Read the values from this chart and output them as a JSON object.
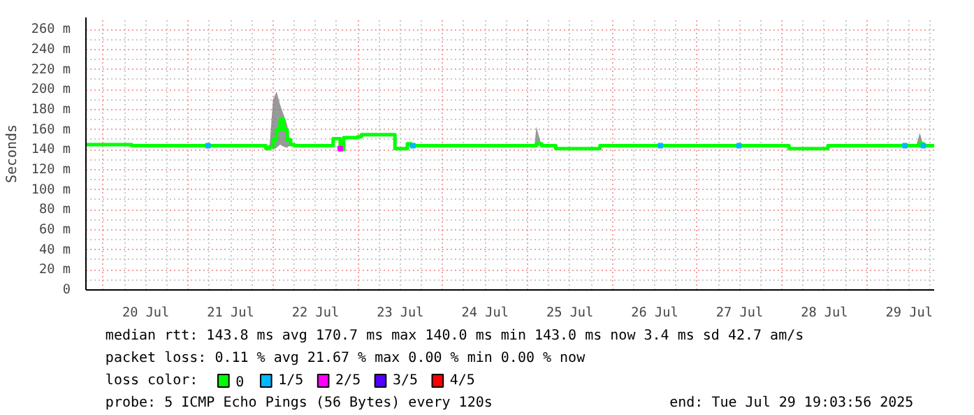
{
  "chart_data": {
    "type": "line",
    "ylabel": "Seconds",
    "xlim": [
      "2025-07-19T19:04",
      "2025-07-29T19:04"
    ],
    "xticks": [
      {
        "value": "2025-07-20T12:00",
        "label": "20 Jul"
      },
      {
        "value": "2025-07-21T12:00",
        "label": "21 Jul"
      },
      {
        "value": "2025-07-22T12:00",
        "label": "22 Jul"
      },
      {
        "value": "2025-07-23T12:00",
        "label": "23 Jul"
      },
      {
        "value": "2025-07-24T12:00",
        "label": "24 Jul"
      },
      {
        "value": "2025-07-25T12:00",
        "label": "25 Jul"
      },
      {
        "value": "2025-07-26T12:00",
        "label": "26 Jul"
      },
      {
        "value": "2025-07-27T12:00",
        "label": "27 Jul"
      },
      {
        "value": "2025-07-28T12:00",
        "label": "28 Jul"
      },
      {
        "value": "2025-07-29T12:00",
        "label": "29 Jul"
      }
    ],
    "ylim": [
      0,
      272
    ],
    "yticks": [
      0,
      {
        "value": 20,
        "label": "20 m"
      },
      {
        "value": 40,
        "label": "40 m"
      },
      {
        "value": 60,
        "label": "60 m"
      },
      {
        "value": 80,
        "label": "80 m"
      },
      {
        "value": 100,
        "label": "100 m"
      },
      {
        "value": 120,
        "label": "120 m"
      },
      {
        "value": 140,
        "label": "140 m"
      },
      {
        "value": 160,
        "label": "160 m"
      },
      {
        "value": 180,
        "label": "180 m"
      },
      {
        "value": 200,
        "label": "200 m"
      },
      {
        "value": 220,
        "label": "220 m"
      },
      {
        "value": 240,
        "label": "240 m"
      },
      {
        "value": 260,
        "label": "260 m"
      }
    ],
    "grid": true,
    "legend": "bottom",
    "legend_title": "loss color:",
    "series": [
      {
        "name": "0",
        "color": "#00ff00",
        "x": [
          "2025-07-19T19:04",
          "2025-07-20T08:00",
          "2025-07-21T21:00",
          "2025-07-21T22:00",
          "2025-07-21T23:00",
          "2025-07-22T00:00",
          "2025-07-22T01:00",
          "2025-07-22T02:00",
          "2025-07-22T03:00",
          "2025-07-22T04:00",
          "2025-07-22T05:00",
          "2025-07-22T06:00",
          "2025-07-22T16:00",
          "2025-07-22T17:00",
          "2025-07-22T18:30",
          "2025-07-22T19:00",
          "2025-07-22T20:00",
          "2025-07-23T00:00",
          "2025-07-23T01:00",
          "2025-07-23T10:00",
          "2025-07-23T10:30",
          "2025-07-23T13:00",
          "2025-07-23T14:00",
          "2025-07-23T15:00",
          "2025-07-25T02:00",
          "2025-07-25T02:30",
          "2025-07-25T04:00",
          "2025-07-25T08:00",
          "2025-07-25T20:00",
          "2025-07-25T20:30",
          "2025-07-28T01:00",
          "2025-07-28T02:00",
          "2025-07-28T12:00",
          "2025-07-28T13:00",
          "2025-07-29T14:00",
          "2025-07-29T15:00",
          "2025-07-29T16:00",
          "2025-07-29T19:04"
        ],
        "values": [
          145,
          144,
          144,
          141,
          143,
          150,
          160,
          170,
          160,
          150,
          145,
          144,
          144,
          151,
          151,
          140,
          152,
          153,
          155,
          155,
          141,
          141,
          146,
          144,
          144,
          146,
          144,
          141,
          141,
          144,
          144,
          141,
          141,
          144,
          144,
          146,
          144,
          144
        ],
        "lower": [
          145,
          144,
          144,
          141,
          143,
          140,
          142,
          145,
          143,
          142,
          145,
          144,
          144,
          151,
          151,
          140,
          152,
          153,
          155,
          155,
          141,
          141,
          146,
          144,
          144,
          144,
          144,
          141,
          141,
          144,
          144,
          141,
          141,
          144,
          144,
          142,
          144,
          144
        ],
        "upper": [
          145,
          144,
          144,
          141,
          143,
          190,
          198,
          185,
          175,
          165,
          145,
          144,
          144,
          151,
          151,
          140,
          152,
          153,
          155,
          155,
          141,
          141,
          146,
          144,
          144,
          163,
          144,
          141,
          141,
          144,
          144,
          141,
          141,
          144,
          144,
          157,
          144,
          144
        ]
      },
      {
        "name": "1/5",
        "color": "#00b8ff",
        "type": "scatter",
        "marker": "square",
        "x": [
          "2025-07-21T05:36",
          "2025-07-23T15:36",
          "2025-07-26T13:36",
          "2025-07-27T11:50",
          "2025-07-29T10:48",
          "2025-07-29T16:00"
        ],
        "values": [
          144,
          144,
          144,
          144,
          144,
          144
        ]
      },
      {
        "name": "2/5",
        "color": "#ff00ff",
        "type": "scatter",
        "marker": "square",
        "x": [
          "2025-07-22T19:00"
        ],
        "values": [
          141
        ]
      },
      {
        "name": "3/5",
        "color": "#5500ff",
        "type": "scatter",
        "marker": "square"
      },
      {
        "name": "4/5",
        "color": "#ff0000",
        "type": "scatter",
        "marker": "square"
      }
    ],
    "annotations": [
      "median rtt:  143.8 ms avg  170.7 ms max  140.0 ms min  143.0 ms now  3.4 ms sd  42.7   am/s",
      "packet loss: 0.11 % avg  21.67 % max  0.00 % min  0.00 % now",
      "probe:       5 ICMP Echo Pings (56 Bytes) every 120s",
      "end: Tue Jul 29 19:03:56 2025"
    ]
  }
}
